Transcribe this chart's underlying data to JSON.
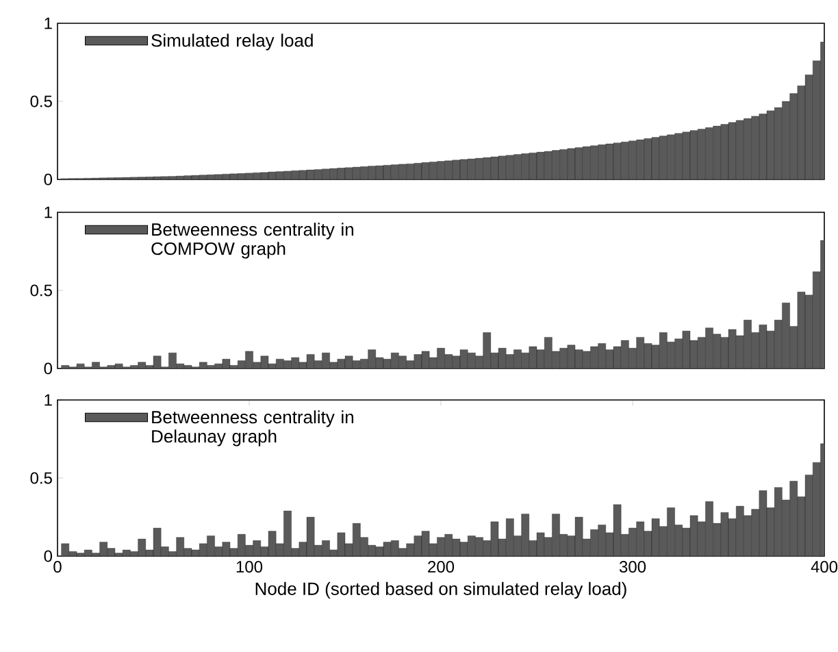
{
  "chart_data": [
    {
      "type": "bar",
      "x": [
        4,
        8,
        12,
        16,
        20,
        24,
        28,
        32,
        36,
        40,
        44,
        48,
        52,
        56,
        60,
        64,
        68,
        72,
        76,
        80,
        84,
        88,
        92,
        96,
        100,
        104,
        108,
        112,
        116,
        120,
        124,
        128,
        132,
        136,
        140,
        144,
        148,
        152,
        156,
        160,
        164,
        168,
        172,
        176,
        180,
        184,
        188,
        192,
        196,
        200,
        204,
        208,
        212,
        216,
        220,
        224,
        228,
        232,
        236,
        240,
        244,
        248,
        252,
        256,
        260,
        264,
        268,
        272,
        276,
        280,
        284,
        288,
        292,
        296,
        300,
        304,
        308,
        312,
        316,
        320,
        324,
        328,
        332,
        336,
        340,
        344,
        348,
        352,
        356,
        360,
        364,
        368,
        372,
        376,
        380,
        384,
        388,
        392,
        396,
        400
      ],
      "series": [
        {
          "name": "Simulated relay load",
          "color": "#5a5a5a",
          "values": [
            0.005,
            0.006,
            0.007,
            0.008,
            0.009,
            0.01,
            0.011,
            0.012,
            0.013,
            0.014,
            0.015,
            0.016,
            0.018,
            0.019,
            0.02,
            0.022,
            0.024,
            0.026,
            0.028,
            0.03,
            0.032,
            0.034,
            0.036,
            0.038,
            0.04,
            0.043,
            0.045,
            0.048,
            0.05,
            0.053,
            0.056,
            0.058,
            0.061,
            0.064,
            0.067,
            0.07,
            0.073,
            0.076,
            0.079,
            0.082,
            0.085,
            0.088,
            0.091,
            0.094,
            0.097,
            0.1,
            0.104,
            0.108,
            0.112,
            0.116,
            0.12,
            0.124,
            0.128,
            0.132,
            0.136,
            0.14,
            0.145,
            0.15,
            0.155,
            0.16,
            0.165,
            0.17,
            0.175,
            0.18,
            0.186,
            0.192,
            0.198,
            0.204,
            0.21,
            0.216,
            0.222,
            0.228,
            0.234,
            0.24,
            0.247,
            0.254,
            0.262,
            0.27,
            0.278,
            0.286,
            0.295,
            0.304,
            0.313,
            0.322,
            0.332,
            0.342,
            0.353,
            0.365,
            0.378,
            0.39,
            0.405,
            0.42,
            0.44,
            0.46,
            0.5,
            0.55,
            0.6,
            0.67,
            0.76,
            0.88
          ]
        }
      ],
      "xlim": [
        0,
        400
      ],
      "ylim": [
        0,
        1
      ],
      "yticks": [
        0,
        0.5,
        1
      ],
      "tick_labels": "y",
      "legend": "top left"
    },
    {
      "type": "bar",
      "x": [
        4,
        8,
        12,
        16,
        20,
        24,
        28,
        32,
        36,
        40,
        44,
        48,
        52,
        56,
        60,
        64,
        68,
        72,
        76,
        80,
        84,
        88,
        92,
        96,
        100,
        104,
        108,
        112,
        116,
        120,
        124,
        128,
        132,
        136,
        140,
        144,
        148,
        152,
        156,
        160,
        164,
        168,
        172,
        176,
        180,
        184,
        188,
        192,
        196,
        200,
        204,
        208,
        212,
        216,
        220,
        224,
        228,
        232,
        236,
        240,
        244,
        248,
        252,
        256,
        260,
        264,
        268,
        272,
        276,
        280,
        284,
        288,
        292,
        296,
        300,
        304,
        308,
        312,
        316,
        320,
        324,
        328,
        332,
        336,
        340,
        344,
        348,
        352,
        356,
        360,
        364,
        368,
        372,
        376,
        380,
        384,
        388,
        392,
        396,
        400
      ],
      "series": [
        {
          "name": "Betweenness centrality in COMPOW graph",
          "color": "#5a5a5a",
          "values": [
            0.02,
            0.01,
            0.03,
            0.01,
            0.04,
            0.01,
            0.02,
            0.03,
            0.01,
            0.02,
            0.04,
            0.02,
            0.08,
            0.01,
            0.1,
            0.03,
            0.02,
            0.01,
            0.04,
            0.02,
            0.03,
            0.06,
            0.02,
            0.05,
            0.11,
            0.04,
            0.08,
            0.03,
            0.06,
            0.05,
            0.07,
            0.04,
            0.09,
            0.05,
            0.1,
            0.04,
            0.06,
            0.08,
            0.05,
            0.06,
            0.12,
            0.07,
            0.06,
            0.1,
            0.08,
            0.05,
            0.09,
            0.11,
            0.07,
            0.13,
            0.09,
            0.08,
            0.12,
            0.1,
            0.08,
            0.23,
            0.1,
            0.13,
            0.09,
            0.12,
            0.1,
            0.14,
            0.12,
            0.2,
            0.11,
            0.13,
            0.15,
            0.12,
            0.11,
            0.14,
            0.16,
            0.12,
            0.14,
            0.18,
            0.13,
            0.2,
            0.16,
            0.15,
            0.23,
            0.17,
            0.19,
            0.24,
            0.18,
            0.2,
            0.26,
            0.22,
            0.2,
            0.25,
            0.21,
            0.31,
            0.23,
            0.28,
            0.24,
            0.31,
            0.42,
            0.27,
            0.49,
            0.47,
            0.62,
            0.82
          ]
        }
      ],
      "xlim": [
        0,
        400
      ],
      "ylim": [
        0,
        1
      ],
      "yticks": [
        0,
        0.5,
        1
      ],
      "tick_labels": "y",
      "legend": "top left"
    },
    {
      "type": "bar",
      "x": [
        4,
        8,
        12,
        16,
        20,
        24,
        28,
        32,
        36,
        40,
        44,
        48,
        52,
        56,
        60,
        64,
        68,
        72,
        76,
        80,
        84,
        88,
        92,
        96,
        100,
        104,
        108,
        112,
        116,
        120,
        124,
        128,
        132,
        136,
        140,
        144,
        148,
        152,
        156,
        160,
        164,
        168,
        172,
        176,
        180,
        184,
        188,
        192,
        196,
        200,
        204,
        208,
        212,
        216,
        220,
        224,
        228,
        232,
        236,
        240,
        244,
        248,
        252,
        256,
        260,
        264,
        268,
        272,
        276,
        280,
        284,
        288,
        292,
        296,
        300,
        304,
        308,
        312,
        316,
        320,
        324,
        328,
        332,
        336,
        340,
        344,
        348,
        352,
        356,
        360,
        364,
        368,
        372,
        376,
        380,
        384,
        388,
        392,
        396,
        400
      ],
      "series": [
        {
          "name": "Betweenness centrality in Delaunay graph",
          "color": "#5a5a5a",
          "values": [
            0.08,
            0.03,
            0.02,
            0.04,
            0.02,
            0.09,
            0.05,
            0.02,
            0.04,
            0.03,
            0.11,
            0.04,
            0.18,
            0.06,
            0.03,
            0.12,
            0.05,
            0.04,
            0.08,
            0.13,
            0.06,
            0.09,
            0.05,
            0.14,
            0.07,
            0.1,
            0.06,
            0.16,
            0.08,
            0.29,
            0.05,
            0.09,
            0.25,
            0.07,
            0.1,
            0.04,
            0.15,
            0.08,
            0.21,
            0.12,
            0.07,
            0.06,
            0.09,
            0.1,
            0.05,
            0.08,
            0.13,
            0.16,
            0.08,
            0.12,
            0.14,
            0.11,
            0.09,
            0.13,
            0.12,
            0.1,
            0.22,
            0.11,
            0.24,
            0.13,
            0.27,
            0.1,
            0.15,
            0.12,
            0.27,
            0.14,
            0.13,
            0.25,
            0.11,
            0.17,
            0.2,
            0.15,
            0.33,
            0.14,
            0.18,
            0.22,
            0.16,
            0.24,
            0.19,
            0.31,
            0.2,
            0.18,
            0.26,
            0.22,
            0.35,
            0.21,
            0.28,
            0.24,
            0.32,
            0.26,
            0.3,
            0.42,
            0.31,
            0.44,
            0.36,
            0.48,
            0.38,
            0.52,
            0.6,
            0.72
          ]
        }
      ],
      "xlim": [
        0,
        400
      ],
      "ylim": [
        0,
        1
      ],
      "xticks": [
        0,
        100,
        200,
        300,
        400
      ],
      "yticks": [
        0,
        0.5,
        1
      ],
      "xlabel": "Node ID (sorted based on simulated relay load)",
      "legend": "top left"
    }
  ]
}
